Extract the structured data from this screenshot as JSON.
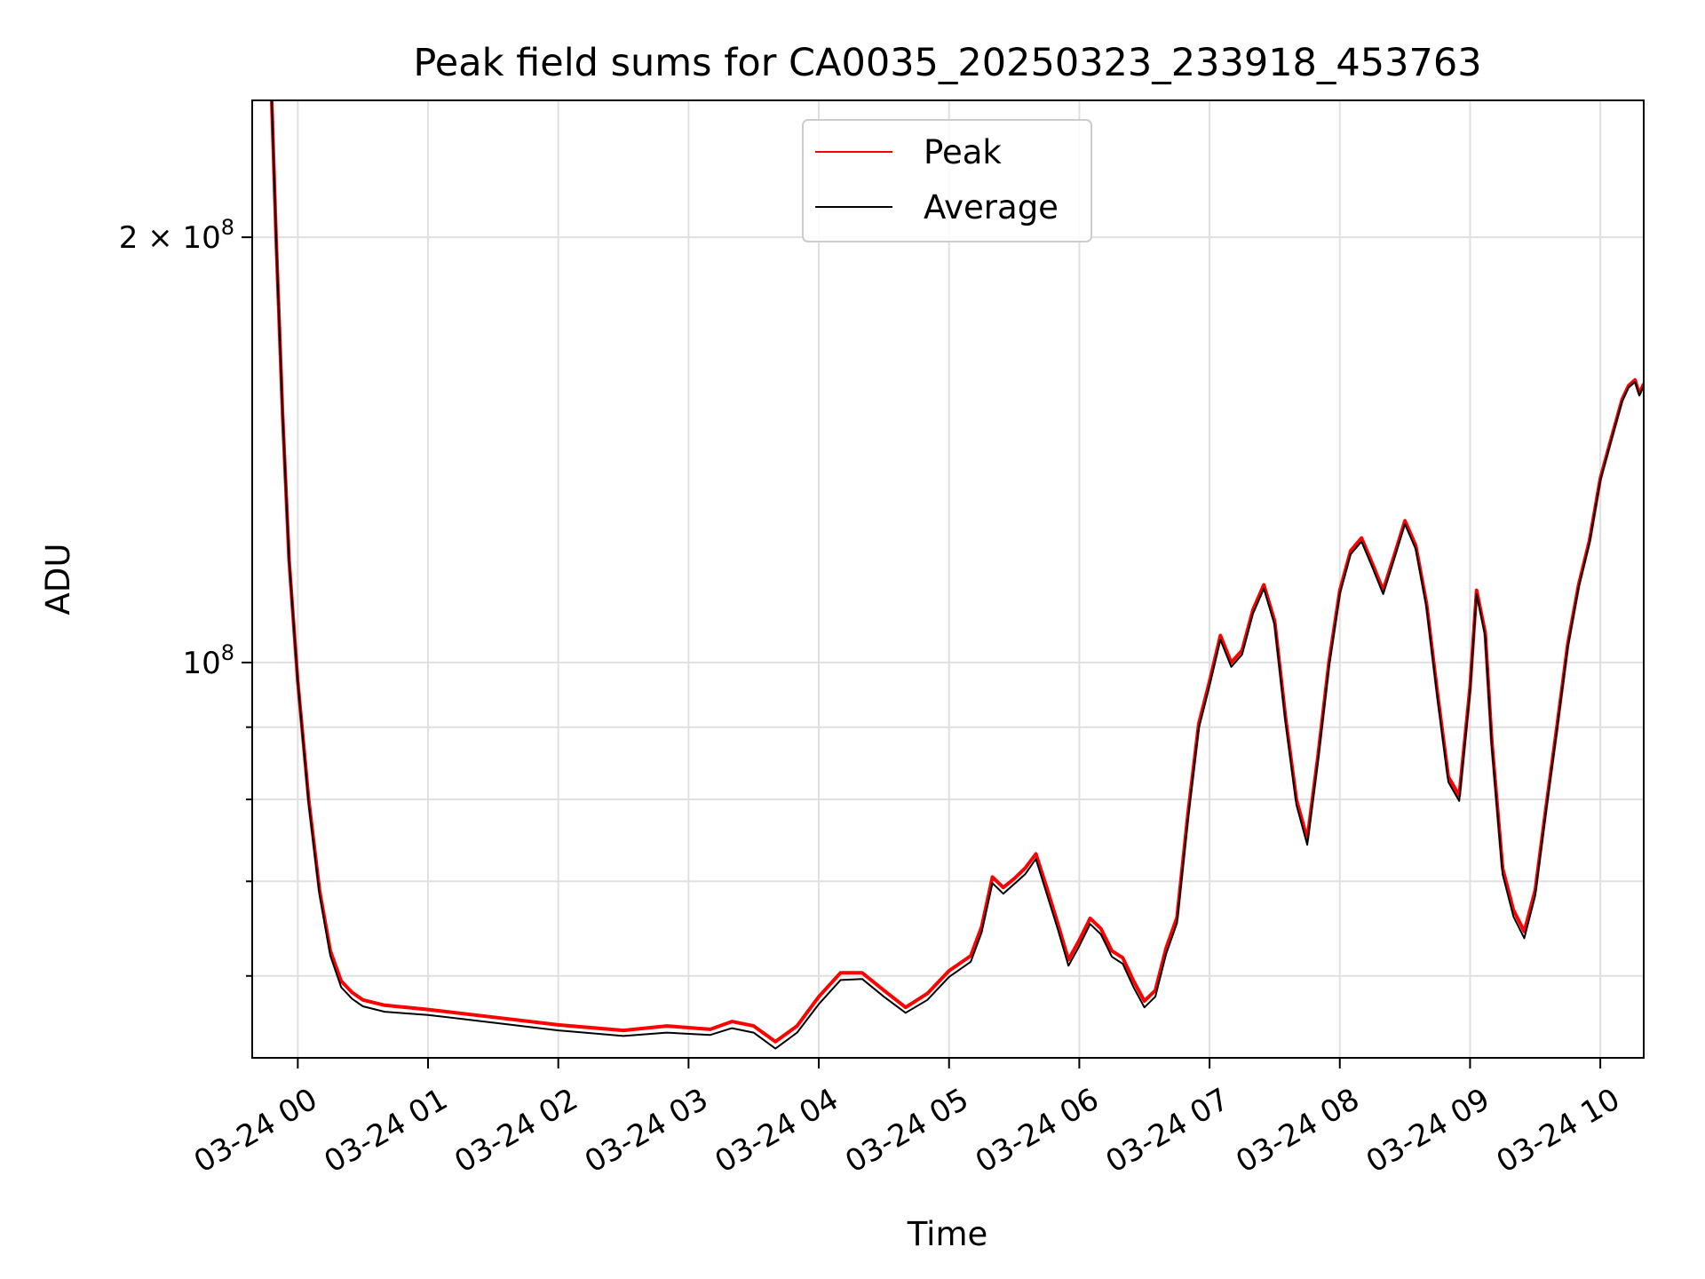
{
  "chart_data": {
    "type": "line",
    "title": "Peak field sums for CA0035_20250323_233918_453763",
    "xlabel": "Time",
    "ylabel": "ADU",
    "y_scale": "log",
    "ylim": [
      52500000,
      250000000
    ],
    "xlim": [
      "2025-03-23 23:39",
      "2025-03-24 10:20"
    ],
    "grid": true,
    "legend_position": "top-center",
    "x_ticks": [
      {
        "value": "2025-03-24 00:00",
        "label": "03-24 00"
      },
      {
        "value": "2025-03-24 01:00",
        "label": "03-24 01"
      },
      {
        "value": "2025-03-24 02:00",
        "label": "03-24 02"
      },
      {
        "value": "2025-03-24 03:00",
        "label": "03-24 03"
      },
      {
        "value": "2025-03-24 04:00",
        "label": "03-24 04"
      },
      {
        "value": "2025-03-24 05:00",
        "label": "03-24 05"
      },
      {
        "value": "2025-03-24 06:00",
        "label": "03-24 06"
      },
      {
        "value": "2025-03-24 07:00",
        "label": "03-24 07"
      },
      {
        "value": "2025-03-24 08:00",
        "label": "03-24 08"
      },
      {
        "value": "2025-03-24 09:00",
        "label": "03-24 09"
      },
      {
        "value": "2025-03-24 10:00",
        "label": "03-24 10"
      }
    ],
    "y_major_ticks": [
      {
        "value": 100000000,
        "base": "10",
        "exp": "8",
        "coef": ""
      },
      {
        "value": 200000000,
        "base": "10",
        "exp": "8",
        "coef": "2 × "
      }
    ],
    "y_minor_ticks": [
      60000000,
      70000000,
      80000000,
      90000000
    ],
    "series": [
      {
        "name": "Peak",
        "color": "#ff0000",
        "points": [
          [
            "2025-03-23 23:48",
            250000000
          ],
          [
            "2025-03-23 23:50",
            200000000
          ],
          [
            "2025-03-23 23:53",
            150000000
          ],
          [
            "2025-03-23 23:56",
            118000000
          ],
          [
            "2025-03-24 00:00",
            97000000
          ],
          [
            "2025-03-24 00:05",
            80000000
          ],
          [
            "2025-03-24 00:10",
            69000000
          ],
          [
            "2025-03-24 00:15",
            62500000
          ],
          [
            "2025-03-24 00:20",
            59500000
          ],
          [
            "2025-03-24 00:25",
            58400000
          ],
          [
            "2025-03-24 00:30",
            57700000
          ],
          [
            "2025-03-24 00:40",
            57200000
          ],
          [
            "2025-03-24 01:00",
            56800000
          ],
          [
            "2025-03-24 01:30",
            56100000
          ],
          [
            "2025-03-24 02:00",
            55400000
          ],
          [
            "2025-03-24 02:30",
            54900000
          ],
          [
            "2025-03-24 02:50",
            55300000
          ],
          [
            "2025-03-24 03:10",
            55000000
          ],
          [
            "2025-03-24 03:20",
            55700000
          ],
          [
            "2025-03-24 03:30",
            55300000
          ],
          [
            "2025-03-24 03:40",
            53900000
          ],
          [
            "2025-03-24 03:50",
            55300000
          ],
          [
            "2025-03-24 04:00",
            58000000
          ],
          [
            "2025-03-24 04:10",
            60300000
          ],
          [
            "2025-03-24 04:20",
            60300000
          ],
          [
            "2025-03-24 04:30",
            58600000
          ],
          [
            "2025-03-24 04:40",
            57000000
          ],
          [
            "2025-03-24 04:50",
            58300000
          ],
          [
            "2025-03-24 05:00",
            60500000
          ],
          [
            "2025-03-24 05:10",
            62000000
          ],
          [
            "2025-03-24 05:15",
            65000000
          ],
          [
            "2025-03-24 05:20",
            70500000
          ],
          [
            "2025-03-24 05:25",
            69300000
          ],
          [
            "2025-03-24 05:30",
            70300000
          ],
          [
            "2025-03-24 05:35",
            71500000
          ],
          [
            "2025-03-24 05:40",
            73200000
          ],
          [
            "2025-03-24 05:45",
            69300000
          ],
          [
            "2025-03-24 05:50",
            65400000
          ],
          [
            "2025-03-24 05:55",
            61600000
          ],
          [
            "2025-03-24 06:00",
            63600000
          ],
          [
            "2025-03-24 06:05",
            65900000
          ],
          [
            "2025-03-24 06:10",
            64800000
          ],
          [
            "2025-03-24 06:15",
            62500000
          ],
          [
            "2025-03-24 06:20",
            61800000
          ],
          [
            "2025-03-24 06:25",
            59500000
          ],
          [
            "2025-03-24 06:30",
            57600000
          ],
          [
            "2025-03-24 06:35",
            58600000
          ],
          [
            "2025-03-24 06:40",
            62800000
          ],
          [
            "2025-03-24 06:45",
            66000000
          ],
          [
            "2025-03-24 06:50",
            78000000
          ],
          [
            "2025-03-24 06:55",
            90500000
          ],
          [
            "2025-03-24 07:00",
            97000000
          ],
          [
            "2025-03-24 07:05",
            104500000
          ],
          [
            "2025-03-24 07:10",
            100000000
          ],
          [
            "2025-03-24 07:15",
            102000000
          ],
          [
            "2025-03-24 07:20",
            109000000
          ],
          [
            "2025-03-24 07:25",
            113500000
          ],
          [
            "2025-03-24 07:30",
            107000000
          ],
          [
            "2025-03-24 07:35",
            91500000
          ],
          [
            "2025-03-24 07:40",
            80000000
          ],
          [
            "2025-03-24 07:45",
            75000000
          ],
          [
            "2025-03-24 07:50",
            86000000
          ],
          [
            "2025-03-24 07:55",
            100000000
          ],
          [
            "2025-03-24 08:00",
            112500000
          ],
          [
            "2025-03-24 08:05",
            120000000
          ],
          [
            "2025-03-24 08:10",
            122500000
          ],
          [
            "2025-03-24 08:15",
            117500000
          ],
          [
            "2025-03-24 08:20",
            112500000
          ],
          [
            "2025-03-24 08:25",
            119000000
          ],
          [
            "2025-03-24 08:30",
            126000000
          ],
          [
            "2025-03-24 08:35",
            121000000
          ],
          [
            "2025-03-24 08:40",
            110000000
          ],
          [
            "2025-03-24 08:45",
            95000000
          ],
          [
            "2025-03-24 08:50",
            83000000
          ],
          [
            "2025-03-24 08:55",
            80500000
          ],
          [
            "2025-03-24 09:00",
            96000000
          ],
          [
            "2025-03-24 09:03",
            112500000
          ],
          [
            "2025-03-24 09:07",
            105000000
          ],
          [
            "2025-03-24 09:10",
            88000000
          ],
          [
            "2025-03-24 09:15",
            71500000
          ],
          [
            "2025-03-24 09:20",
            66800000
          ],
          [
            "2025-03-24 09:25",
            64500000
          ],
          [
            "2025-03-24 09:30",
            69000000
          ],
          [
            "2025-03-24 09:35",
            79000000
          ],
          [
            "2025-03-24 09:40",
            90000000
          ],
          [
            "2025-03-24 09:45",
            103000000
          ],
          [
            "2025-03-24 09:50",
            113500000
          ],
          [
            "2025-03-24 09:55",
            122000000
          ],
          [
            "2025-03-24 10:00",
            135000000
          ],
          [
            "2025-03-24 10:05",
            144000000
          ],
          [
            "2025-03-24 10:10",
            153500000
          ],
          [
            "2025-03-24 10:13",
            157000000
          ],
          [
            "2025-03-24 10:16",
            158500000
          ],
          [
            "2025-03-24 10:18",
            155000000
          ],
          [
            "2025-03-24 10:20",
            157500000
          ]
        ]
      },
      {
        "name": "Average",
        "color": "#000000",
        "points": [
          [
            "2025-03-23 23:48",
            250000000
          ],
          [
            "2025-03-23 23:50",
            200000000
          ],
          [
            "2025-03-23 23:53",
            150000000
          ],
          [
            "2025-03-23 23:56",
            118000000
          ],
          [
            "2025-03-24 00:00",
            97000000
          ],
          [
            "2025-03-24 00:05",
            79500000
          ],
          [
            "2025-03-24 00:10",
            68500000
          ],
          [
            "2025-03-24 00:15",
            62000000
          ],
          [
            "2025-03-24 00:20",
            58900000
          ],
          [
            "2025-03-24 00:25",
            57800000
          ],
          [
            "2025-03-24 00:30",
            57100000
          ],
          [
            "2025-03-24 00:40",
            56600000
          ],
          [
            "2025-03-24 01:00",
            56300000
          ],
          [
            "2025-03-24 01:30",
            55600000
          ],
          [
            "2025-03-24 02:00",
            54900000
          ],
          [
            "2025-03-24 02:30",
            54400000
          ],
          [
            "2025-03-24 02:50",
            54700000
          ],
          [
            "2025-03-24 03:10",
            54500000
          ],
          [
            "2025-03-24 03:20",
            55100000
          ],
          [
            "2025-03-24 03:30",
            54700000
          ],
          [
            "2025-03-24 03:40",
            53300000
          ],
          [
            "2025-03-24 03:50",
            54700000
          ],
          [
            "2025-03-24 04:00",
            57300000
          ],
          [
            "2025-03-24 04:10",
            59600000
          ],
          [
            "2025-03-24 04:20",
            59700000
          ],
          [
            "2025-03-24 04:30",
            58000000
          ],
          [
            "2025-03-24 04:40",
            56500000
          ],
          [
            "2025-03-24 04:50",
            57700000
          ],
          [
            "2025-03-24 05:00",
            59900000
          ],
          [
            "2025-03-24 05:10",
            61400000
          ],
          [
            "2025-03-24 05:15",
            64400000
          ],
          [
            "2025-03-24 05:20",
            69800000
          ],
          [
            "2025-03-24 05:25",
            68600000
          ],
          [
            "2025-03-24 05:30",
            69700000
          ],
          [
            "2025-03-24 05:35",
            70800000
          ],
          [
            "2025-03-24 05:40",
            72600000
          ],
          [
            "2025-03-24 05:45",
            68600000
          ],
          [
            "2025-03-24 05:50",
            64800000
          ],
          [
            "2025-03-24 05:55",
            61000000
          ],
          [
            "2025-03-24 06:00",
            63000000
          ],
          [
            "2025-03-24 06:05",
            65300000
          ],
          [
            "2025-03-24 06:10",
            64200000
          ],
          [
            "2025-03-24 06:15",
            61900000
          ],
          [
            "2025-03-24 06:20",
            61200000
          ],
          [
            "2025-03-24 06:25",
            58900000
          ],
          [
            "2025-03-24 06:30",
            57000000
          ],
          [
            "2025-03-24 06:35",
            58000000
          ],
          [
            "2025-03-24 06:40",
            62200000
          ],
          [
            "2025-03-24 06:45",
            65400000
          ],
          [
            "2025-03-24 06:50",
            77300000
          ],
          [
            "2025-03-24 06:55",
            89800000
          ],
          [
            "2025-03-24 07:00",
            96300000
          ],
          [
            "2025-03-24 07:05",
            103800000
          ],
          [
            "2025-03-24 07:10",
            99300000
          ],
          [
            "2025-03-24 07:15",
            101300000
          ],
          [
            "2025-03-24 07:20",
            108300000
          ],
          [
            "2025-03-24 07:25",
            112800000
          ],
          [
            "2025-03-24 07:30",
            106300000
          ],
          [
            "2025-03-24 07:35",
            90800000
          ],
          [
            "2025-03-24 07:40",
            79300000
          ],
          [
            "2025-03-24 07:45",
            74300000
          ],
          [
            "2025-03-24 07:50",
            85300000
          ],
          [
            "2025-03-24 07:55",
            99300000
          ],
          [
            "2025-03-24 08:00",
            111800000
          ],
          [
            "2025-03-24 08:05",
            119300000
          ],
          [
            "2025-03-24 08:10",
            121800000
          ],
          [
            "2025-03-24 08:15",
            116800000
          ],
          [
            "2025-03-24 08:20",
            111800000
          ],
          [
            "2025-03-24 08:25",
            118300000
          ],
          [
            "2025-03-24 08:30",
            125300000
          ],
          [
            "2025-03-24 08:35",
            120300000
          ],
          [
            "2025-03-24 08:40",
            109300000
          ],
          [
            "2025-03-24 08:45",
            94300000
          ],
          [
            "2025-03-24 08:50",
            82300000
          ],
          [
            "2025-03-24 08:55",
            79800000
          ],
          [
            "2025-03-24 09:00",
            95300000
          ],
          [
            "2025-03-24 09:03",
            111800000
          ],
          [
            "2025-03-24 09:07",
            104300000
          ],
          [
            "2025-03-24 09:10",
            87300000
          ],
          [
            "2025-03-24 09:15",
            70800000
          ],
          [
            "2025-03-24 09:20",
            66100000
          ],
          [
            "2025-03-24 09:25",
            63800000
          ],
          [
            "2025-03-24 09:30",
            68400000
          ],
          [
            "2025-03-24 09:35",
            78500000
          ],
          [
            "2025-03-24 09:40",
            89500000
          ],
          [
            "2025-03-24 09:45",
            102500000
          ],
          [
            "2025-03-24 09:50",
            113000000
          ],
          [
            "2025-03-24 09:55",
            121500000
          ],
          [
            "2025-03-24 10:00",
            134500000
          ],
          [
            "2025-03-24 10:05",
            143500000
          ],
          [
            "2025-03-24 10:10",
            153000000
          ],
          [
            "2025-03-24 10:13",
            156500000
          ],
          [
            "2025-03-24 10:16",
            158000000
          ],
          [
            "2025-03-24 10:18",
            154500000
          ],
          [
            "2025-03-24 10:20",
            157000000
          ]
        ]
      }
    ]
  }
}
